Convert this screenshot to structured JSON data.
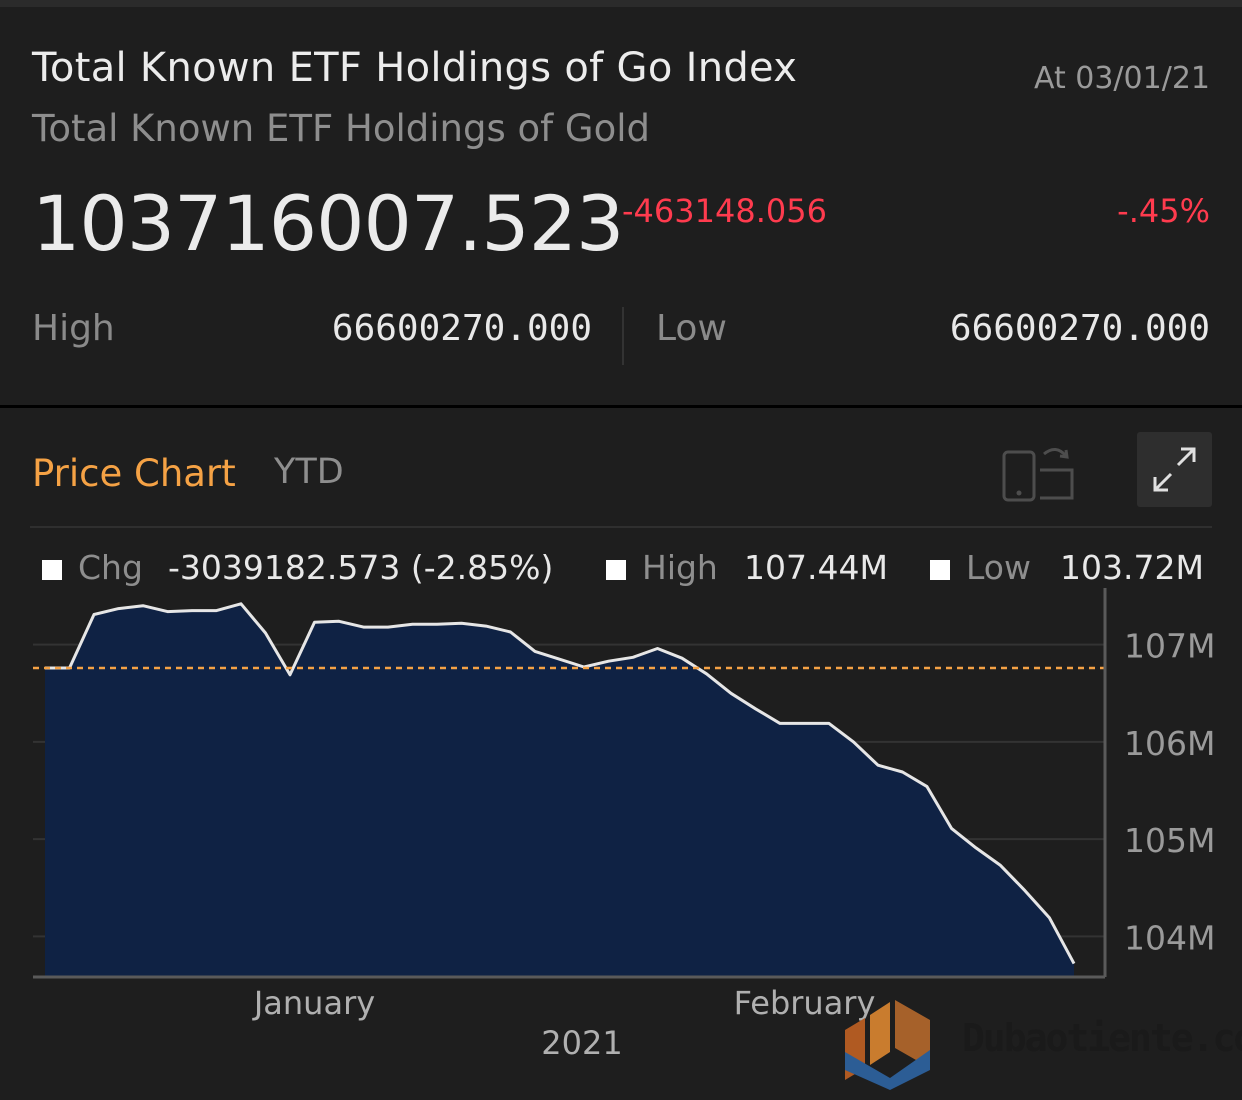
{
  "header": {
    "title": "Total Known ETF Holdings of Go Index",
    "subtitle": "Total Known ETF Holdings of Gold",
    "as_of": "At 03/01/21",
    "price": "103716007.523",
    "change_abs": "-463148.056",
    "change_pct": "-.45%",
    "high_label": "High",
    "high_value": "66600270.000",
    "low_label": "Low",
    "low_value": "66600270.000"
  },
  "chart_card": {
    "title": "Price Chart",
    "range": "YTD",
    "stats": {
      "chg_label": "Chg",
      "chg_value": "-3039182.573 (-2.85%)",
      "high_label": "High",
      "high_value": "107.44M",
      "low_label": "Low",
      "low_value": "103.72M"
    }
  },
  "colors": {
    "accent_orange": "#f5a245",
    "negative_red": "#ff3b4e",
    "area_fill": "#0f2244",
    "line": "#e6e6e6"
  },
  "watermark": {
    "text": "Dubaotiente.com"
  },
  "chart_data": {
    "type": "area",
    "title": "Price Chart",
    "xlabel": "2021",
    "ylabel": "",
    "x_tick_labels": [
      "January",
      "February"
    ],
    "y_tick_labels": [
      "107M",
      "106M",
      "105M",
      "104M"
    ],
    "y_ticks": [
      107,
      106,
      105,
      104
    ],
    "ylim": [
      103.5,
      107.5
    ],
    "xlim": [
      0,
      42
    ],
    "x_ticks_index": [
      11,
      31
    ],
    "reference_line": 106.76,
    "series": [
      {
        "name": "Total Known ETF Holdings of Gold (M)",
        "values": [
          106.76,
          106.76,
          107.31,
          107.37,
          107.4,
          107.34,
          107.35,
          107.35,
          107.42,
          107.12,
          106.69,
          107.23,
          107.24,
          107.18,
          107.18,
          107.21,
          107.21,
          107.22,
          107.19,
          107.13,
          106.93,
          106.85,
          106.77,
          106.83,
          106.87,
          106.96,
          106.86,
          106.7,
          106.5,
          106.34,
          106.19,
          106.19,
          106.19,
          106.0,
          105.76,
          105.69,
          105.54,
          105.11,
          104.91,
          104.73,
          104.47,
          104.19,
          103.72
        ]
      }
    ]
  }
}
